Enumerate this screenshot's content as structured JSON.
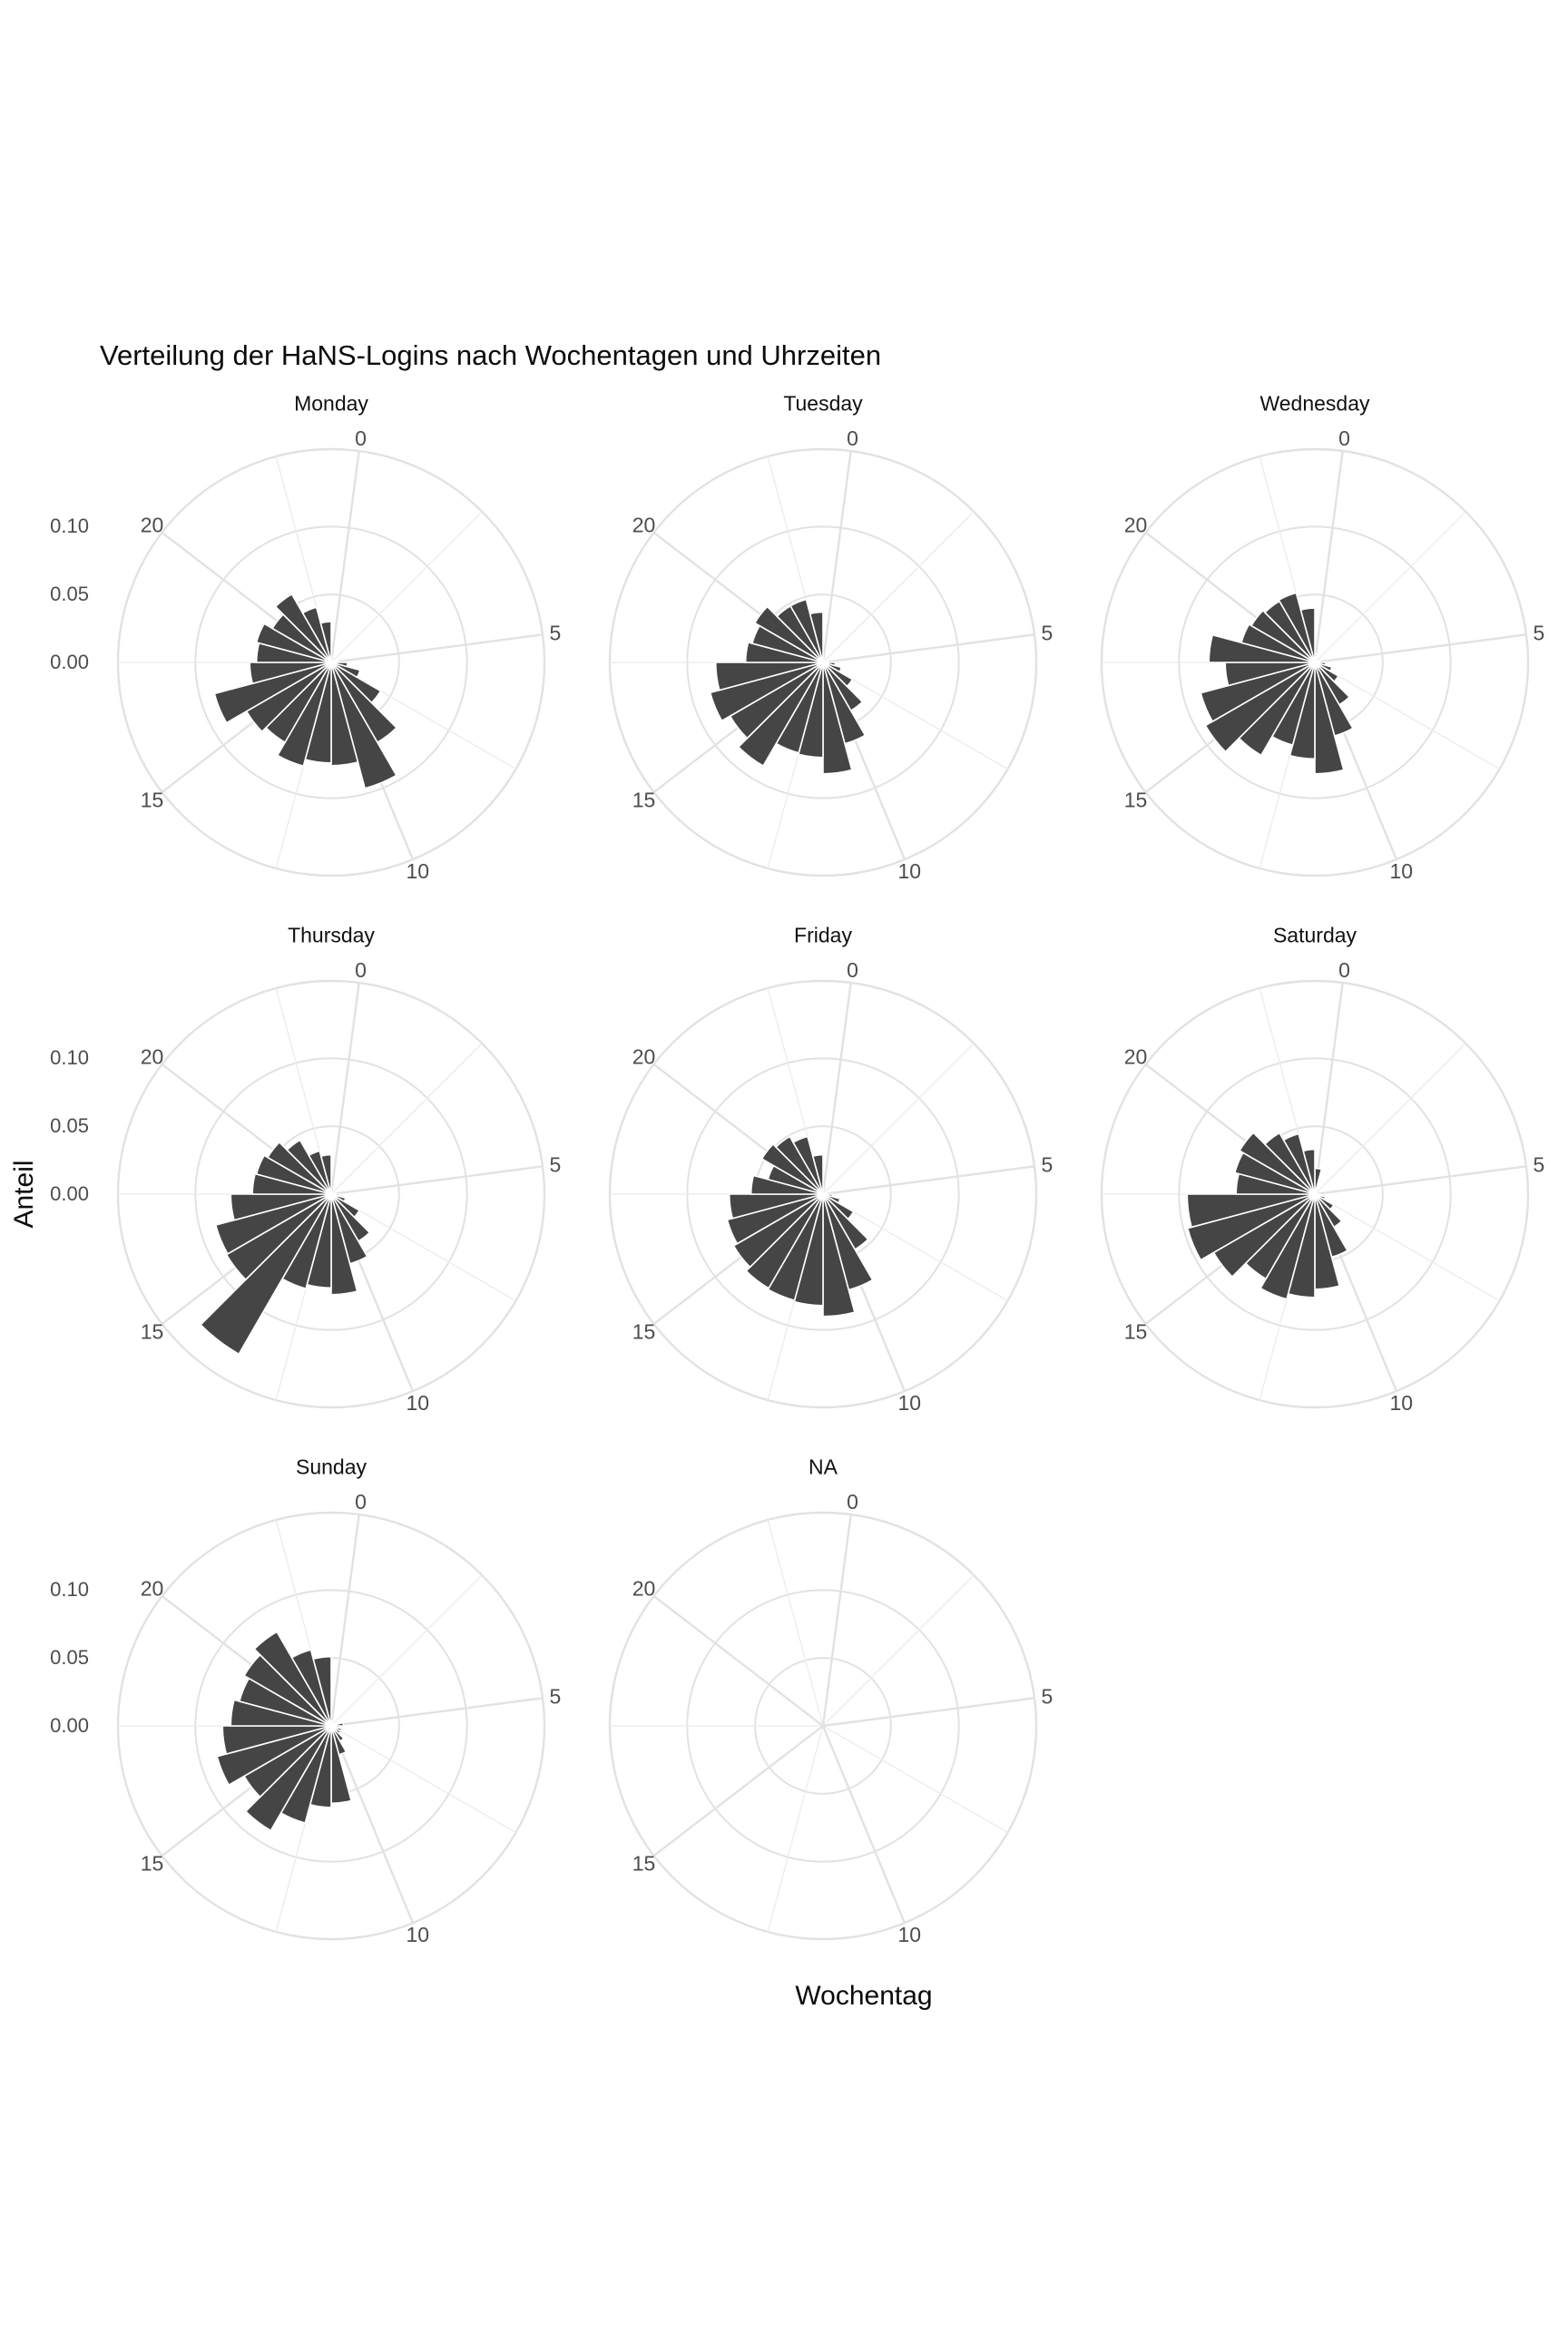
{
  "title": "Verteilung der HaNS-Logins nach Wochentagen und Uhrzeiten",
  "axes": {
    "x_title": "Wochentag",
    "y_title": "Anteil",
    "radial_tick_labels": [
      "0.00",
      "0.05",
      "0.10"
    ],
    "radial_tick_values": [
      0,
      0.05,
      0.1
    ],
    "hour_tick_labels": [
      "0",
      "5",
      "10",
      "15",
      "20"
    ],
    "hour_tick_values": [
      0,
      5,
      10,
      15,
      20
    ],
    "r_limit": 0.157
  },
  "colors": {
    "bar": "#454545",
    "grid_major": "#e2e2e2",
    "grid_minor": "#ededed",
    "tick_text": "#4d4d4d",
    "text": "#0b0b0b",
    "background": "#ffffff"
  },
  "chart_data": {
    "type": "bar",
    "coord": "polar",
    "theta": "hour_of_day_0_to_23",
    "bar_angular_width_hours": 1,
    "facets": [
      {
        "day": "Monday",
        "values": [
          0.002,
          0.001,
          0.001,
          0.001,
          0.002,
          0.005,
          0.012,
          0.022,
          0.042,
          0.068,
          0.096,
          0.076,
          0.074,
          0.079,
          0.068,
          0.072,
          0.089,
          0.06,
          0.055,
          0.057,
          0.05,
          0.058,
          0.042,
          0.03
        ]
      },
      {
        "day": "Tuesday",
        "values": [
          0.002,
          0.001,
          0.001,
          0.001,
          0.002,
          0.004,
          0.009,
          0.014,
          0.025,
          0.041,
          0.062,
          0.082,
          0.07,
          0.069,
          0.088,
          0.079,
          0.086,
          0.079,
          0.057,
          0.054,
          0.058,
          0.048,
          0.048,
          0.037
        ]
      },
      {
        "day": "Wednesday",
        "values": [
          0.006,
          0.002,
          0.001,
          0.001,
          0.002,
          0.004,
          0.008,
          0.013,
          0.02,
          0.036,
          0.056,
          0.082,
          0.071,
          0.063,
          0.079,
          0.093,
          0.087,
          0.066,
          0.078,
          0.056,
          0.054,
          0.052,
          0.053,
          0.04
        ]
      },
      {
        "day": "Thursday",
        "values": [
          0.002,
          0.001,
          0.001,
          0.001,
          0.001,
          0.003,
          0.006,
          0.011,
          0.024,
          0.04,
          0.053,
          0.074,
          0.069,
          0.072,
          0.136,
          0.089,
          0.088,
          0.074,
          0.058,
          0.057,
          0.054,
          0.046,
          0.033,
          0.029
        ]
      },
      {
        "day": "Friday",
        "values": [
          0.002,
          0.001,
          0.001,
          0.001,
          0.002,
          0.003,
          0.007,
          0.013,
          0.026,
          0.047,
          0.073,
          0.09,
          0.082,
          0.081,
          0.08,
          0.076,
          0.073,
          0.069,
          0.053,
          0.042,
          0.052,
          0.049,
          0.044,
          0.029
        ]
      },
      {
        "day": "Saturday",
        "values": [
          0.019,
          0.002,
          0.001,
          0.001,
          0.001,
          0.002,
          0.004,
          0.008,
          0.016,
          0.028,
          0.048,
          0.07,
          0.076,
          0.08,
          0.072,
          0.086,
          0.097,
          0.094,
          0.058,
          0.061,
          0.064,
          0.052,
          0.046,
          0.033
        ]
      },
      {
        "day": "Sunday",
        "values": [
          0.003,
          0.002,
          0.002,
          0.001,
          0.002,
          0.009,
          0.006,
          0.008,
          0.008,
          0.013,
          0.022,
          0.057,
          0.06,
          0.074,
          0.089,
          0.074,
          0.087,
          0.08,
          0.074,
          0.07,
          0.074,
          0.08,
          0.058,
          0.051
        ]
      },
      {
        "day": "NA",
        "values": [
          0,
          0,
          0,
          0,
          0,
          0,
          0,
          0,
          0,
          0,
          0,
          0,
          0,
          0,
          0,
          0,
          0,
          0,
          0,
          0,
          0,
          0,
          0,
          0
        ]
      }
    ]
  }
}
